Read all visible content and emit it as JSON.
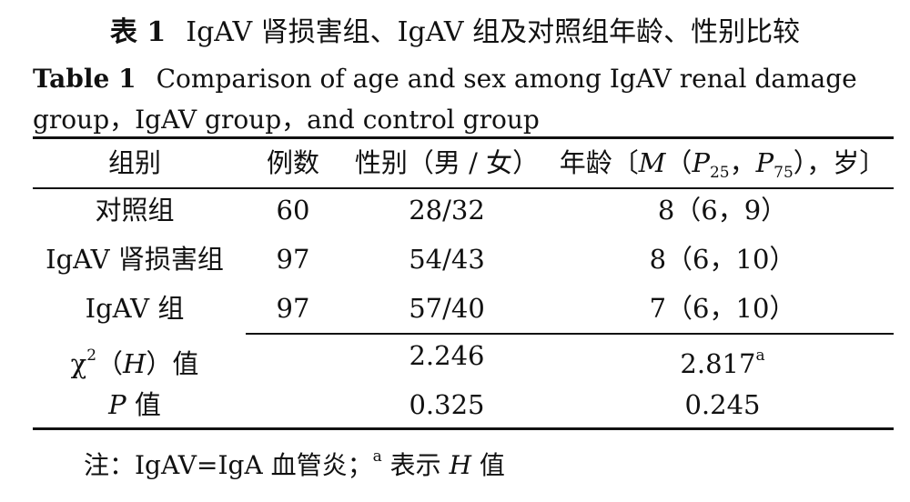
{
  "caption_cn": {
    "label": "表 1",
    "text": "IgAV 肾损害组、IgAV 组及对照组年龄、性别比较"
  },
  "caption_en": {
    "label": "Table 1",
    "text": "Comparison of age and sex among IgAV renal damage group，IgAV group，and control group"
  },
  "headers": {
    "group": "组别",
    "cases": "例数",
    "sex": "性别（男 / 女）",
    "age_prefix": "年龄〔",
    "age_m": "M",
    "age_open": "（",
    "age_p": "P",
    "age_p25": "25",
    "age_comma": "，",
    "age_p75": "75",
    "age_suffix": "），岁〕"
  },
  "rows": [
    {
      "group": "对照组",
      "cases": "60",
      "sex": "28/32",
      "age": "8（6，9）"
    },
    {
      "group": "IgAV 肾损害组",
      "cases": "97",
      "sex": "54/43",
      "age": "8（6，10）"
    },
    {
      "group": "IgAV 组",
      "cases": "97",
      "sex": "57/40",
      "age": "7（6，10）"
    }
  ],
  "stats": {
    "chi_label_a": "χ",
    "chi_sup": "2",
    "chi_label_b": "（",
    "chi_h": "H",
    "chi_label_c": "）值",
    "chi_sex": "2.246",
    "chi_age": "2.817",
    "chi_age_sup": "a",
    "p_label_p": "P",
    "p_label_rest": " 值",
    "p_sex": "0.325",
    "p_age": "0.245"
  },
  "note": {
    "prefix": "注：IgAV=IgA 血管炎；",
    "sup": "a",
    "text_a": " 表示 ",
    "h": "H",
    "text_b": " 值"
  }
}
